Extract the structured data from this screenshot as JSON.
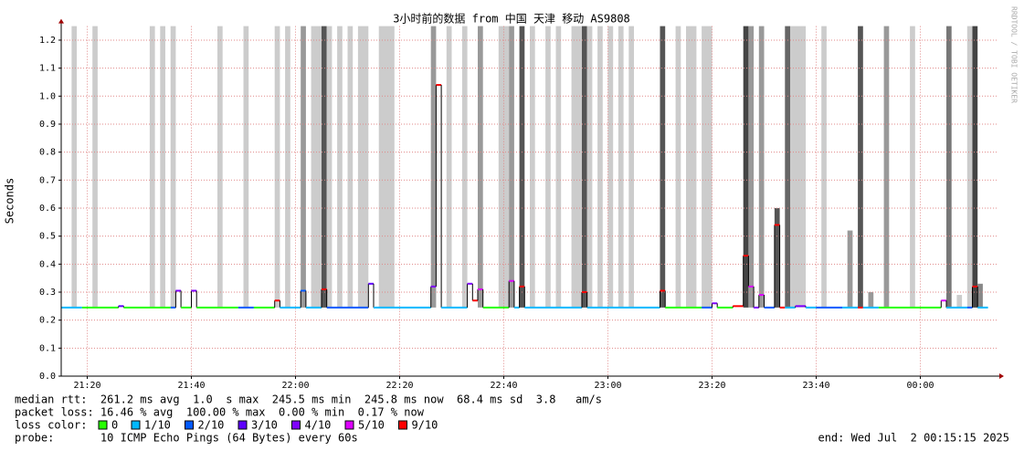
{
  "chart_data": {
    "type": "line",
    "title": "3小时前的数据 from 中国 天津 移动 AS9808",
    "y_label": "Seconds",
    "watermark": "RRDTOOL / TOBI OETIKER",
    "xlim": [
      1275,
      1455
    ],
    "xticks": [
      {
        "value": 1280,
        "label": "21:20"
      },
      {
        "value": 1300,
        "label": "21:40"
      },
      {
        "value": 1320,
        "label": "22:00"
      },
      {
        "value": 1340,
        "label": "22:20"
      },
      {
        "value": 1360,
        "label": "22:40"
      },
      {
        "value": 1380,
        "label": "23:00"
      },
      {
        "value": 1400,
        "label": "23:20"
      },
      {
        "value": 1420,
        "label": "23:40"
      },
      {
        "value": 1440,
        "label": "00:00"
      }
    ],
    "ylim": [
      0,
      1.25
    ],
    "yticks": [
      {
        "value": 0,
        "label": "0.0"
      },
      0.1,
      0.2,
      0.3,
      0.4,
      0.5,
      0.6,
      0.7,
      0.8,
      0.9,
      {
        "value": 1,
        "label": "1.0"
      },
      1.1,
      1.2
    ],
    "grid": true,
    "grid_color": "#e08888",
    "median": {
      "x": [
        1275,
        1279,
        1286,
        1287,
        1296,
        1297,
        1298,
        1300,
        1301,
        1309,
        1312,
        1316,
        1317,
        1321,
        1322,
        1325,
        1326,
        1334,
        1335,
        1346,
        1347,
        1348,
        1353,
        1354,
        1355,
        1356,
        1361,
        1362,
        1363,
        1364,
        1375,
        1376,
        1390,
        1391,
        1398,
        1400,
        1401,
        1404,
        1406,
        1407,
        1408,
        1409,
        1410,
        1412,
        1413,
        1414,
        1416,
        1418,
        1420,
        1425,
        1428,
        1429,
        1432,
        1444,
        1445,
        1449,
        1450,
        1451
      ],
      "values": [
        0.245,
        0.245,
        0.25,
        0.245,
        0.245,
        0.305,
        0.245,
        0.305,
        0.245,
        0.245,
        0.245,
        0.27,
        0.245,
        0.305,
        0.245,
        0.31,
        0.245,
        0.33,
        0.245,
        0.32,
        1.04,
        0.245,
        0.33,
        0.27,
        0.31,
        0.245,
        0.34,
        0.245,
        0.32,
        0.245,
        0.3,
        0.245,
        0.305,
        0.245,
        0.245,
        0.26,
        0.245,
        0.25,
        0.43,
        0.32,
        0.245,
        0.29,
        0.245,
        0.54,
        0.245,
        0.245,
        0.25,
        0.245,
        0.245,
        0.245,
        0.245,
        0.245,
        0.245,
        0.27,
        0.245,
        0.245,
        0.32,
        0.245
      ],
      "loss": [
        1,
        0,
        3,
        0,
        2,
        4,
        0,
        4,
        0,
        2,
        0,
        6,
        1,
        2,
        1,
        6,
        2,
        3,
        1,
        4,
        6,
        1,
        4,
        6,
        5,
        0,
        5,
        1,
        6,
        1,
        6,
        1,
        6,
        0,
        2,
        4,
        0,
        6,
        6,
        5,
        4,
        5,
        2,
        6,
        6,
        1,
        4,
        1,
        2,
        1,
        6,
        1,
        0,
        5,
        1,
        2,
        6,
        1
      ]
    },
    "smoke": {
      "x_start": [
        1277,
        1281,
        1292,
        1294,
        1296,
        1305,
        1310,
        1316,
        1318,
        1321,
        1323,
        1325,
        1326,
        1328,
        1330,
        1332,
        1336,
        1346,
        1349,
        1352,
        1355,
        1359,
        1361,
        1363,
        1365,
        1368,
        1370,
        1373,
        1375,
        1376,
        1378,
        1380,
        1382,
        1384,
        1390,
        1393,
        1395,
        1398,
        1406,
        1407,
        1409,
        1412,
        1414,
        1415,
        1421,
        1426,
        1428,
        1430,
        1433,
        1438,
        1445,
        1447,
        1449,
        1450,
        1451
      ],
      "x_end": [
        1278,
        1282,
        1293,
        1295,
        1297,
        1306,
        1311,
        1317,
        1319,
        1322,
        1325,
        1326,
        1327,
        1329,
        1331,
        1334,
        1339,
        1347,
        1350,
        1353,
        1356,
        1361,
        1362,
        1364,
        1366,
        1369,
        1371,
        1375,
        1376,
        1377,
        1379,
        1381,
        1383,
        1385,
        1391,
        1394,
        1397,
        1400,
        1407,
        1408,
        1410,
        1413,
        1415,
        1418,
        1422,
        1427,
        1429,
        1431,
        1434,
        1439,
        1446,
        1448,
        1450,
        1451,
        1452
      ],
      "low": [
        0.245,
        0.245,
        0.245,
        0.245,
        0.245,
        0.245,
        0.245,
        0.245,
        0.245,
        0.245,
        0.245,
        0.245,
        0.245,
        0.245,
        0.245,
        0.245,
        0.245,
        0.245,
        0.245,
        0.245,
        0.245,
        0.245,
        0.245,
        0.245,
        0.245,
        0.245,
        0.245,
        0.245,
        0.245,
        0.245,
        0.245,
        0.245,
        0.245,
        0.245,
        0.245,
        0.245,
        0.245,
        0.245,
        0.245,
        0.245,
        0.245,
        0.245,
        0.245,
        0.245,
        0.245,
        0.245,
        0.245,
        0.245,
        0.245,
        0.245,
        0.245,
        0.245,
        0.245,
        0.245,
        0.245
      ],
      "high": [
        1.25,
        1.25,
        1.25,
        1.25,
        1.25,
        1.25,
        1.25,
        1.25,
        1.25,
        1.25,
        1.25,
        1.25,
        1.25,
        1.25,
        1.25,
        1.25,
        1.25,
        1.25,
        1.25,
        1.25,
        1.25,
        1.25,
        1.25,
        1.25,
        1.25,
        1.25,
        1.25,
        1.25,
        1.25,
        1.25,
        1.25,
        1.25,
        1.25,
        1.25,
        1.25,
        1.25,
        1.25,
        1.25,
        1.25,
        1.25,
        1.25,
        0.6,
        1.25,
        1.25,
        1.25,
        0.52,
        1.25,
        0.3,
        1.25,
        1.25,
        1.25,
        0.29,
        1.25,
        1.25,
        0.33
      ],
      "colors": [
        "#cccccc",
        "#cccccc",
        "#cccccc",
        "#cccccc",
        "#cccccc",
        "#cccccc",
        "#cccccc",
        "#cccccc",
        "#cccccc",
        "#999999",
        "#cccccc",
        "#555555",
        "#cccccc",
        "#cccccc",
        "#cccccc",
        "#cccccc",
        "#cccccc",
        "#999999",
        "#cccccc",
        "#cccccc",
        "#999999",
        "#cccccc",
        "#999999",
        "#555555",
        "#cccccc",
        "#cccccc",
        "#cccccc",
        "#cccccc",
        "#555555",
        "#cccccc",
        "#cccccc",
        "#cccccc",
        "#cccccc",
        "#cccccc",
        "#555555",
        "#cccccc",
        "#cccccc",
        "#cccccc",
        "#444444",
        "#999999",
        "#999999",
        "#555555",
        "#666666",
        "#cccccc",
        "#cccccc",
        "#999999",
        "#555555",
        "#999999",
        "#999999",
        "#cccccc",
        "#777777",
        "#cccccc",
        "#cccccc",
        "#444444",
        "#888888"
      ]
    },
    "loss_legend": {
      "label": "loss color:",
      "entries": [
        {
          "name": "0",
          "color": "#26ff00"
        },
        {
          "name": "1/10",
          "color": "#00b8ff"
        },
        {
          "name": "2/10",
          "color": "#0059ff"
        },
        {
          "name": "3/10",
          "color": "#5e00ff"
        },
        {
          "name": "4/10",
          "color": "#7e00ff"
        },
        {
          "name": "5/10",
          "color": "#dd00ff"
        },
        {
          "name": "9/10",
          "color": "#ff0000"
        }
      ]
    },
    "stats": [
      "median rtt:  261.2 ms avg  1.0  s max  245.5 ms min  245.8 ms now  68.4 ms sd  3.8   am/s",
      "packet loss: 16.46 % avg  100.00 % max  0.00 % min  0.17 % now"
    ],
    "probe": "probe:       10 ICMP Echo Pings (64 Bytes) every 60s",
    "end": "end: Wed Jul  2 00:15:15 2025"
  }
}
